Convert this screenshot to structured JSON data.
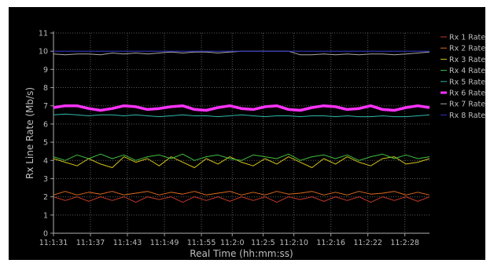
{
  "chart_data": {
    "type": "line",
    "title": "",
    "xlabel": "Real Time (hh:mm:ss)",
    "ylabel": "Rx Line Rate (Mb/s)",
    "ylim": [
      0,
      11
    ],
    "yticks": [
      "0",
      "1",
      "2",
      "3",
      "4",
      "5",
      "6",
      "7",
      "8",
      "9",
      "10",
      "11"
    ],
    "xticks": [
      "11:1:31",
      "11:1:37",
      "11:1:43",
      "11:1:49",
      "11:1:55",
      "11:2:0",
      "11:2:5",
      "11:2:10",
      "11:2:16",
      "11:2:22",
      "11:2:28"
    ],
    "grid": true,
    "legend_position": "right",
    "x_seconds_from": "11:1:31",
    "x_range_seconds": [
      0,
      61
    ],
    "series": [
      {
        "name": "Rx 1 Rate",
        "color": "#c0392b",
        "values": [
          2.0,
          1.8,
          2.0,
          1.75,
          2.0,
          1.8,
          2.0,
          1.7,
          2.0,
          1.85,
          2.0,
          1.7,
          2.0,
          1.8,
          2.0,
          1.75,
          2.0,
          1.8,
          2.0,
          1.7,
          2.0,
          1.85,
          2.0,
          1.75,
          2.0,
          1.8,
          2.0,
          1.7,
          2.0,
          1.8,
          2.0,
          1.75,
          2.0
        ]
      },
      {
        "name": "Rx 2 Rate",
        "color": "#e06a1b",
        "values": [
          2.1,
          2.3,
          2.1,
          2.25,
          2.15,
          2.3,
          2.1,
          2.2,
          2.3,
          2.1,
          2.25,
          2.15,
          2.3,
          2.1,
          2.2,
          2.3,
          2.1,
          2.25,
          2.1,
          2.3,
          2.15,
          2.2,
          2.3,
          2.1,
          2.25,
          2.1,
          2.3,
          2.15,
          2.2,
          2.3,
          2.1,
          2.25,
          2.1
        ]
      },
      {
        "name": "Rx 3 Rate",
        "color": "#d4c21a",
        "values": [
          4.1,
          3.9,
          3.7,
          4.1,
          3.8,
          3.6,
          4.2,
          3.9,
          4.1,
          3.7,
          4.2,
          3.9,
          3.6,
          4.1,
          3.8,
          4.2,
          3.9,
          3.7,
          4.1,
          3.8,
          4.2,
          3.9,
          3.6,
          4.1,
          3.8,
          4.2,
          3.9,
          3.7,
          4.1,
          4.2,
          3.8,
          3.9,
          4.1
        ]
      },
      {
        "name": "Rx 4 Rate",
        "color": "#3fbf3f",
        "values": [
          4.2,
          4.0,
          4.3,
          4.1,
          4.35,
          4.1,
          4.3,
          4.0,
          4.2,
          4.3,
          4.1,
          4.35,
          4.0,
          4.2,
          4.3,
          4.1,
          4.0,
          4.3,
          4.2,
          4.1,
          4.35,
          4.0,
          4.2,
          4.3,
          4.1,
          4.3,
          4.0,
          4.2,
          4.35,
          4.1,
          4.3,
          4.1,
          4.2
        ]
      },
      {
        "name": "Rx 5 Rate",
        "color": "#2fb8a8",
        "values": [
          6.5,
          6.55,
          6.5,
          6.45,
          6.5,
          6.5,
          6.45,
          6.5,
          6.45,
          6.4,
          6.45,
          6.5,
          6.45,
          6.45,
          6.4,
          6.45,
          6.5,
          6.45,
          6.4,
          6.45,
          6.45,
          6.4,
          6.45,
          6.45,
          6.4,
          6.45,
          6.4,
          6.4,
          6.45,
          6.4,
          6.4,
          6.45,
          6.5
        ]
      },
      {
        "name": "Rx 6 Rate",
        "color": "#ff33ff",
        "values": [
          6.9,
          7.0,
          7.0,
          6.85,
          6.75,
          6.85,
          7.0,
          6.95,
          6.8,
          6.85,
          6.95,
          7.0,
          6.8,
          6.75,
          6.9,
          7.0,
          6.85,
          6.8,
          6.95,
          7.0,
          6.8,
          6.75,
          6.9,
          7.0,
          6.95,
          6.8,
          6.85,
          7.0,
          6.8,
          6.75,
          6.9,
          7.0,
          6.9
        ]
      },
      {
        "name": "Rx 7 Rate",
        "color": "#a8a8a8",
        "values": [
          9.85,
          9.8,
          9.85,
          9.85,
          9.8,
          9.9,
          9.85,
          9.9,
          9.85,
          9.9,
          9.95,
          9.9,
          9.95,
          9.95,
          9.9,
          9.95,
          10.0,
          10.0,
          10.0,
          10.0,
          10.0,
          9.8,
          9.8,
          9.85,
          9.8,
          9.85,
          9.8,
          9.85,
          9.85,
          9.8,
          9.85,
          9.9,
          9.95
        ]
      },
      {
        "name": "Rx 8 Rate",
        "color": "#3030c8",
        "values": [
          10.0,
          10.0,
          10.0,
          10.0,
          10.0,
          10.0,
          10.0,
          10.0,
          10.0,
          10.0,
          10.0,
          10.0,
          10.0,
          10.0,
          10.0,
          10.0,
          10.0,
          10.0,
          10.0,
          10.0,
          10.0,
          10.0,
          10.0,
          10.0,
          10.0,
          10.0,
          10.0,
          10.0,
          10.0,
          10.0,
          10.0,
          10.0,
          10.0
        ]
      }
    ],
    "highlight_series": "Rx 6 Rate"
  }
}
